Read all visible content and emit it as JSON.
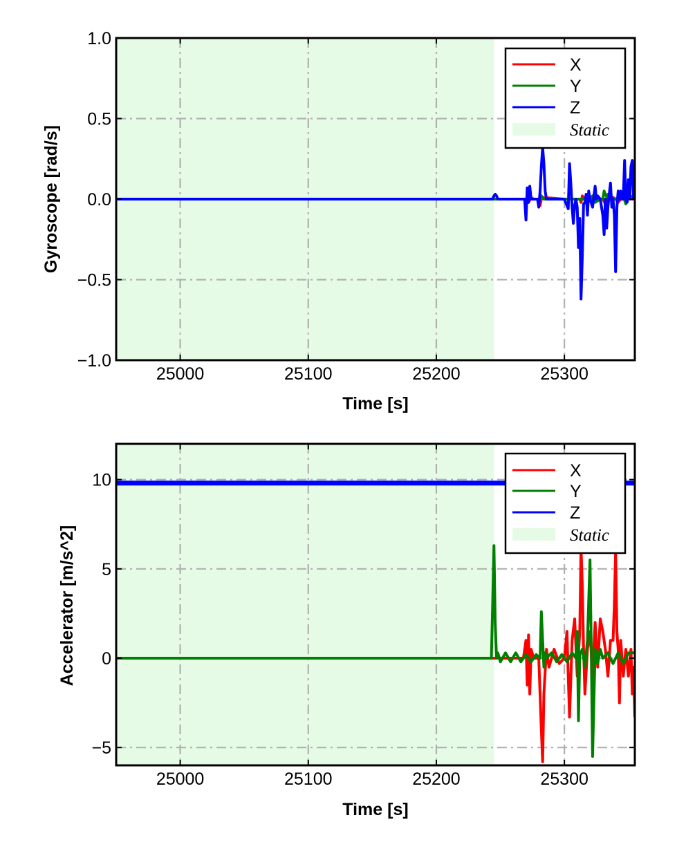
{
  "colors": {
    "X": "#ff0000",
    "Y": "#008000",
    "Z": "#0000ff",
    "static_fill": "#e6fbe6",
    "grid": "#b0b0b0"
  },
  "chart_data": [
    {
      "type": "line",
      "xlabel": "Time [s]",
      "ylabel": "Gyroscope [rad/s]",
      "xlim": [
        24950,
        25355
      ],
      "ylim": [
        -1.0,
        1.0
      ],
      "xticks": [
        25000,
        25100,
        25200,
        25300
      ],
      "xtick_labels": [
        "25000",
        "25100",
        "25200",
        "25300"
      ],
      "yticks": [
        -1.0,
        -0.5,
        0.0,
        0.5,
        1.0
      ],
      "ytick_labels": [
        "−1.0",
        "−0.5",
        "0.0",
        "0.5",
        "1.0"
      ],
      "grid": true,
      "legend": {
        "placement": "upper-right",
        "entries": [
          "X",
          "Y",
          "Z",
          "Static"
        ]
      },
      "static_span": [
        24950,
        25245
      ],
      "series": [
        {
          "name": "X",
          "color_key": "X",
          "x": [
            24950,
            25245,
            25270,
            25272,
            25274,
            25276,
            25280,
            25281,
            25282,
            25284,
            25300,
            25312,
            25313,
            25314,
            25316,
            25330,
            25332,
            25334,
            25340,
            25342,
            25344,
            25355
          ],
          "y": [
            0,
            0,
            0,
            -0.02,
            0.01,
            0,
            0,
            -0.04,
            0,
            0.01,
            0,
            0,
            -0.02,
            0.02,
            0,
            0,
            -0.03,
            0.03,
            0,
            -0.02,
            0,
            0
          ]
        },
        {
          "name": "Y",
          "color_key": "Y",
          "x": [
            24950,
            25245,
            25280,
            25282,
            25284,
            25300,
            25320,
            25322,
            25324,
            25328,
            25330,
            25331,
            25332,
            25334,
            25340,
            25346,
            25348,
            25350,
            25355
          ],
          "y": [
            0,
            0,
            0,
            0.02,
            0,
            0,
            0,
            0.02,
            -0.02,
            0,
            0,
            0.05,
            0.03,
            0,
            0,
            0.02,
            -0.03,
            0.03,
            0
          ],
          "draw_under": true
        },
        {
          "name": "Z",
          "color_key": "Z",
          "x": [
            24950,
            25244,
            25245,
            25246,
            25247,
            25248,
            25269,
            25270,
            25271,
            25272,
            25273,
            25274,
            25279,
            25280,
            25281,
            25282,
            25283,
            25284,
            25285,
            25286,
            25300,
            25303,
            25304,
            25305,
            25306,
            25307,
            25308,
            25309,
            25310,
            25311,
            25312,
            25313,
            25314,
            25315,
            25316,
            25317,
            25318,
            25319,
            25320,
            25322,
            25324,
            25325,
            25326,
            25328,
            25330,
            25331,
            25332,
            25333,
            25334,
            25335,
            25336,
            25337,
            25338,
            25339,
            25340,
            25341,
            25342,
            25343,
            25344,
            25345,
            25346,
            25347,
            25348,
            25349,
            25350,
            25351,
            25352,
            25353,
            25354,
            25355
          ],
          "y": [
            0,
            0,
            0.02,
            0.03,
            0.02,
            0,
            0,
            -0.13,
            0.07,
            -0.02,
            0.08,
            0,
            0,
            -0.05,
            0.05,
            0.2,
            0.32,
            0.22,
            0.05,
            0,
            0,
            -0.06,
            0.22,
            0.1,
            -0.05,
            -0.15,
            -0.04,
            0,
            -0.05,
            -0.3,
            -0.12,
            -0.62,
            -0.35,
            -0.03,
            -0.02,
            0.03,
            -0.1,
            0.05,
            0,
            -0.05,
            0.08,
            0,
            0.02,
            0,
            -0.1,
            -0.22,
            0,
            -0.18,
            -0.05,
            0.03,
            0.1,
            -0.05,
            0,
            -0.1,
            -0.45,
            -0.05,
            0.05,
            0,
            0.05,
            0,
            0,
            0.24,
            0,
            -0.02,
            0.12,
            0,
            0.2,
            0.24,
            0,
            0
          ]
        }
      ]
    },
    {
      "type": "line",
      "xlabel": "Time [s]",
      "ylabel": "Accelerator [m/s^2]",
      "xlim": [
        24950,
        25355
      ],
      "ylim": [
        -6,
        12
      ],
      "xticks": [
        25000,
        25100,
        25200,
        25300
      ],
      "xtick_labels": [
        "25000",
        "25100",
        "25200",
        "25300"
      ],
      "yticks": [
        -5,
        0,
        5,
        10
      ],
      "ytick_labels": [
        "−5",
        "0",
        "5",
        "10"
      ],
      "grid": true,
      "legend": {
        "placement": "upper-right",
        "entries": [
          "X",
          "Y",
          "Z",
          "Static"
        ]
      },
      "static_span": [
        24950,
        25245
      ],
      "series": [
        {
          "name": "X",
          "color_key": "X",
          "x": [
            24950,
            25268,
            25270,
            25271,
            25272,
            25273,
            25274,
            25276,
            25280,
            25282,
            25283,
            25284,
            25286,
            25288,
            25292,
            25296,
            25300,
            25302,
            25303,
            25304,
            25306,
            25308,
            25310,
            25312,
            25313,
            25314,
            25315,
            25316,
            25318,
            25320,
            25322,
            25324,
            25326,
            25328,
            25330,
            25332,
            25334,
            25336,
            25338,
            25339,
            25340,
            25341,
            25342,
            25343,
            25344,
            25346,
            25348,
            25350,
            25352,
            25353,
            25354,
            25355
          ],
          "y": [
            0,
            0,
            1.0,
            -1.5,
            1.3,
            -2.0,
            0.5,
            0,
            0,
            -4.0,
            -5.8,
            -2.0,
            0.5,
            -0.5,
            0.5,
            -0.3,
            0,
            1.5,
            -1.0,
            -3.3,
            1.0,
            2.2,
            -1.0,
            1.5,
            6.2,
            4.0,
            0.5,
            -2.0,
            0.5,
            1.5,
            -1.0,
            2.0,
            -0.5,
            2.2,
            1.5,
            0.5,
            -1.0,
            1.0,
            1.0,
            3.0,
            6.0,
            1.5,
            0.5,
            -2.5,
            1.0,
            -1.0,
            0.5,
            -1.0,
            0.5,
            -2.0,
            -0.5,
            -3.3
          ]
        },
        {
          "name": "Y",
          "color_key": "Y",
          "x": [
            24950,
            25243,
            25244,
            25245,
            25246,
            25247,
            25248,
            25250,
            25254,
            25258,
            25262,
            25266,
            25270,
            25274,
            25278,
            25281,
            25282,
            25283,
            25284,
            25285,
            25286,
            25290,
            25294,
            25298,
            25302,
            25306,
            25309,
            25310,
            25311,
            25312,
            25314,
            25316,
            25318,
            25320,
            25321,
            25322,
            25324,
            25326,
            25328,
            25330,
            25334,
            25338,
            25342,
            25346,
            25350,
            25355
          ],
          "y": [
            0,
            0,
            3.0,
            6.3,
            2.0,
            0,
            0.3,
            -0.2,
            0.3,
            -0.2,
            0.3,
            -0.2,
            0.2,
            -0.2,
            0.2,
            0,
            2.6,
            1.0,
            -0.5,
            0.3,
            0,
            0.3,
            -0.2,
            0.2,
            -0.2,
            0.3,
            0,
            1.5,
            -3.5,
            0.2,
            0.5,
            -0.5,
            1.0,
            5.5,
            0.5,
            -5.5,
            0.5,
            -0.3,
            0.5,
            0,
            0.3,
            -0.3,
            0.3,
            -0.3,
            0.3,
            0.3
          ]
        },
        {
          "name": "Z",
          "color_key": "Z",
          "x": [
            24950,
            25355
          ],
          "y": [
            9.8,
            9.8
          ]
        }
      ]
    }
  ]
}
